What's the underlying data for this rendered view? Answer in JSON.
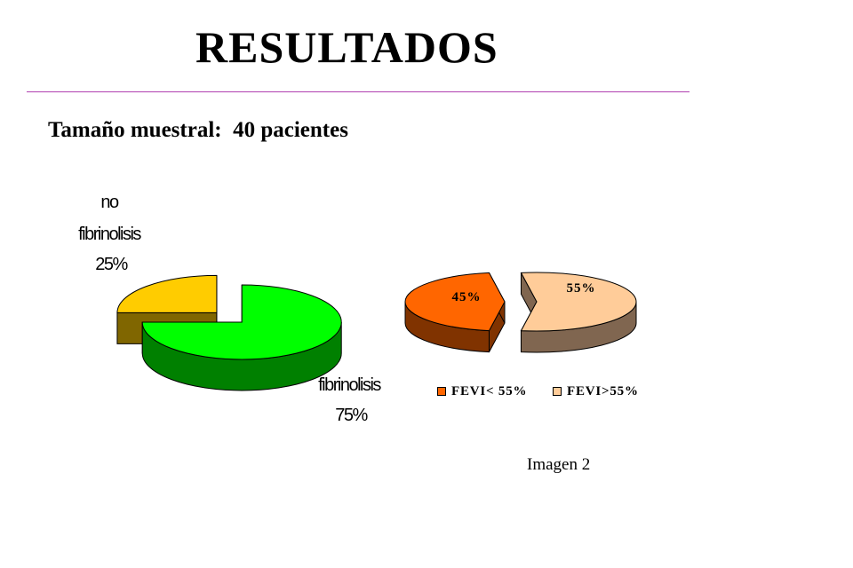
{
  "slide": {
    "title": "RESULTADOS",
    "sample_size": "Tamaño muestral:  40 pacientes",
    "caption": "Imagen 2",
    "rule_color": "#b040b0"
  },
  "chart_data": [
    {
      "type": "pie",
      "style": "3d-exploded",
      "slices": [
        {
          "label_lines": [
            "no",
            "fibrinolisis"
          ],
          "percent_label": "25%",
          "value": 25,
          "color": "#ffcc00",
          "side_color": "#806600"
        },
        {
          "label_lines": [
            "fibrinolisis"
          ],
          "percent_label": "75%",
          "value": 75,
          "color": "#00ff00",
          "side_color": "#008000"
        }
      ],
      "legend": "none"
    },
    {
      "type": "pie",
      "style": "3d-exploded",
      "slices": [
        {
          "legend_label": "FEVI< 55%",
          "percent_label": "45%",
          "value": 45,
          "color": "#ff6600",
          "side_color": "#803300"
        },
        {
          "legend_label": "FEVI>55%",
          "percent_label": "55%",
          "value": 55,
          "color": "#ffcc99",
          "side_color": "#806650"
        }
      ],
      "legend": "bottom"
    }
  ]
}
